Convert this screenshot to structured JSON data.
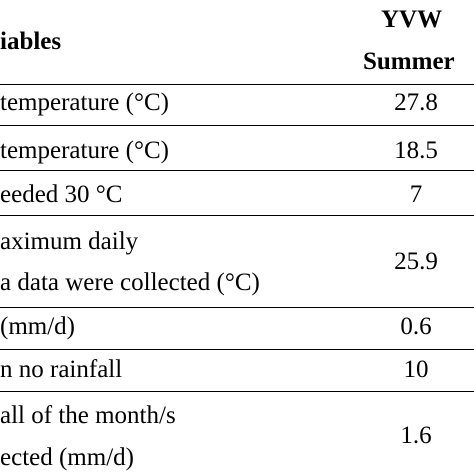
{
  "table": {
    "header": {
      "variables_label": "iables",
      "column_label_line1": "YVW",
      "column_label_line2": "Summer"
    },
    "rows": [
      {
        "label_lines": [
          "temperature (°C)"
        ],
        "value": "27.8"
      },
      {
        "label_lines": [
          "temperature (°C)"
        ],
        "value": "18.5"
      },
      {
        "label_lines": [
          "eeded 30 °C"
        ],
        "value": "7"
      },
      {
        "label_lines": [
          "aximum daily",
          "a data were collected (°C)"
        ],
        "value": "25.9"
      },
      {
        "label_lines": [
          "(mm/d)"
        ],
        "value": "0.6"
      },
      {
        "label_lines": [
          "n no rainfall"
        ],
        "value": "10"
      },
      {
        "label_lines": [
          "all of the month/s",
          "ected (mm/d)"
        ],
        "value": "1.6"
      }
    ]
  }
}
